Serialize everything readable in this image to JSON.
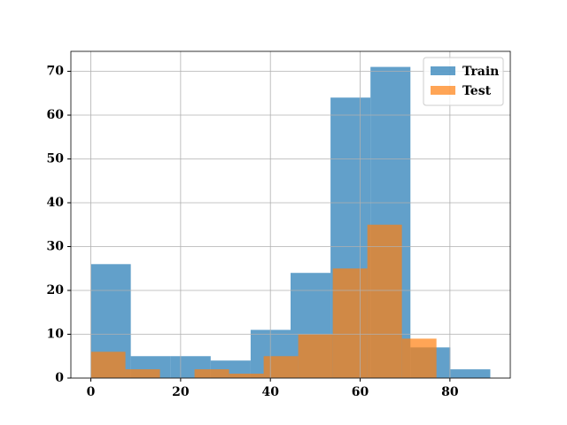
{
  "chart_data": {
    "type": "histogram",
    "series": [
      {
        "name": "Train",
        "color": "#1f77b4",
        "alpha": 0.7,
        "bins": [
          0,
          8.9,
          17.8,
          26.7,
          35.6,
          44.5,
          53.4,
          62.3,
          71.2,
          80.1,
          89
        ],
        "values": [
          26,
          5,
          5,
          4,
          11,
          24,
          64,
          71,
          7,
          2
        ]
      },
      {
        "name": "Test",
        "color": "#ff7f0e",
        "alpha": 0.7,
        "bins": [
          0,
          7.7,
          15.4,
          23.1,
          30.8,
          38.5,
          46.2,
          53.9,
          61.6,
          69.3,
          77
        ],
        "values": [
          6,
          2,
          0,
          2,
          1,
          5,
          10,
          25,
          35,
          9
        ]
      }
    ],
    "xlim": [
      -4.45,
      93.45
    ],
    "xticks": [
      0,
      20,
      40,
      60,
      80
    ],
    "ylim": [
      0,
      74.55
    ],
    "yticks": [
      0,
      10,
      20,
      30,
      40,
      50,
      60,
      70
    ],
    "grid": true,
    "legend": "upper right"
  }
}
